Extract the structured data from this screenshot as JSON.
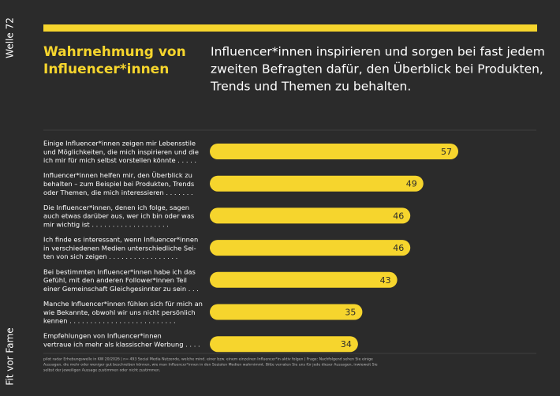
{
  "side_top": "Welle 72",
  "side_bottom": "Fit vor Fame",
  "chart_data": {
    "type": "bar",
    "orientation": "horizontal",
    "color": "#f6d52d",
    "title": [
      "Wahrnehmung von",
      "Influencer*innen"
    ],
    "subtitle": [
      "Influencer*innen inspirieren und sorgen bei fast jedem",
      "zweiten Befragten dafür, den Überblick bei Produkten,",
      "Trends und Themen zu behalten."
    ],
    "categories": [
      [
        "Einige Influencer*innen zeigen mir Lebensstile",
        "und Möglichkeiten, die mich inspirieren und die",
        "ich mir für mich selbst vorstellen könnte . . . . ."
      ],
      [
        "Influencer*innen helfen mir, den Überblick zu",
        "behalten – zum Beispiel bei Produkten, Trends",
        "oder Themen, die mich interessieren . . . . . . ."
      ],
      [
        "Die Influencer*innen, denen ich folge, sagen",
        "auch etwas darüber aus, wer ich bin oder was",
        "mir wichtig ist . . . . . . . . . . . . . . . . . . ."
      ],
      [
        "Ich finde es interessant, wenn Influencer*innen",
        "in verschiedenen Medien unterschiedliche Sei-",
        "ten von sich zeigen . . . . . . . . . . . . . . . . ."
      ],
      [
        "Bei bestimmten Influencer*innen habe ich das",
        "Gefühl, mit den anderen Follower*innen Teil",
        "einer Gemeinschaft Gleichgesinnter zu sein . . ."
      ],
      [
        "Manche Influencer*innen fühlen sich für mich an",
        "wie Bekannte, obwohl wir uns nicht persönlich",
        "kennen . . . . . . . . . . . . . . . . . . . . . . . . . ."
      ],
      [
        "Empfehlungen von Influencer*innen",
        "vertraue ich mehr als klassischer Werbung . . . ."
      ]
    ],
    "values": [
      57,
      49,
      46,
      46,
      43,
      35,
      34
    ],
    "footnote": [
      "pilot radar Erhebungswelle in KW 20/2026 | n= 493 Social Media Nutzende, welche mind. einer bzw. einem einzelnen Influencer*in aktiv folgen | Frage: Nachfolgend sehen Sie einige",
      "Aussagen, die mehr oder weniger gut beschreiben können, wie man Influencer*innen in den Sozialen Medien wahrnimmt. Bitte verraten Sie uns für jede dieser Aussagen, inwieweit Sie",
      "selbst der jeweiligen Aussage zustimmen oder nicht zustimmen."
    ]
  }
}
